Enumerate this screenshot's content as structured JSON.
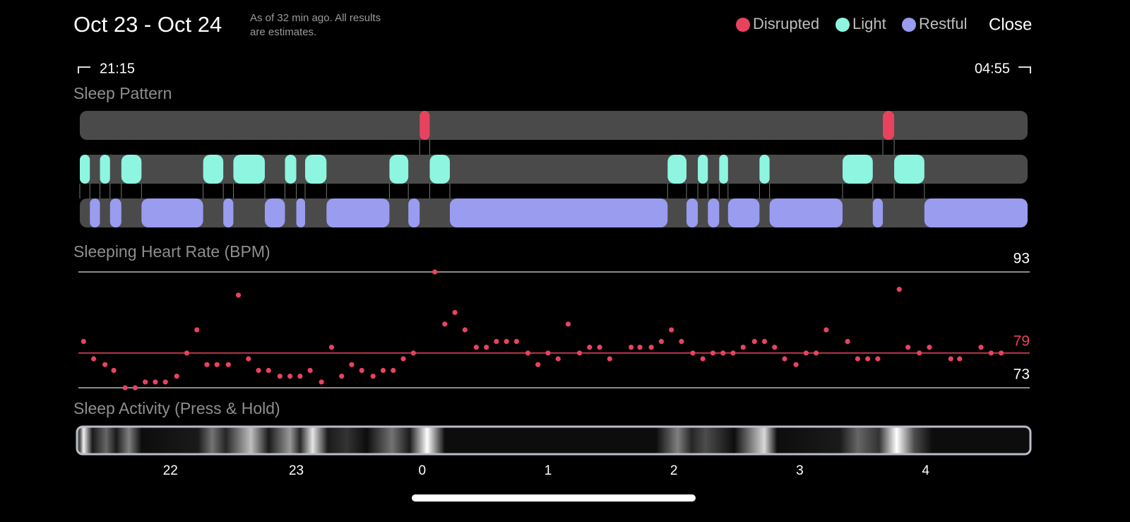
{
  "header": {
    "title": "Oct 23 - Oct 24",
    "note_lines": [
      "As of 32 min ago. All results",
      "are estimates."
    ],
    "close": "Close"
  },
  "range": {
    "start": "21:15",
    "end": "04:55"
  },
  "chart_data": [
    {
      "type": "timeline",
      "title": "Sleep Pattern",
      "xlim": [
        21.28,
        28.81
      ],
      "series": [
        {
          "name": "Disrupted",
          "color": "#e8435e",
          "segments": [
            [
              23.98,
              24.06
            ],
            [
              27.66,
              27.75
            ]
          ]
        },
        {
          "name": "Light",
          "color": "#8ef5e0",
          "segments": [
            [
              21.28,
              21.36
            ],
            [
              21.44,
              21.52
            ],
            [
              21.61,
              21.77
            ],
            [
              22.26,
              22.42
            ],
            [
              22.5,
              22.75
            ],
            [
              22.91,
              23.0
            ],
            [
              23.07,
              23.24
            ],
            [
              23.74,
              23.89
            ],
            [
              24.06,
              24.22
            ],
            [
              25.95,
              26.1
            ],
            [
              26.19,
              26.27
            ],
            [
              26.36,
              26.43
            ],
            [
              26.68,
              26.76
            ],
            [
              27.34,
              27.58
            ],
            [
              27.75,
              27.99
            ]
          ]
        },
        {
          "name": "Restful",
          "color": "#9a9cf0",
          "segments": [
            [
              21.36,
              21.44
            ],
            [
              21.52,
              21.61
            ],
            [
              21.77,
              22.26
            ],
            [
              22.42,
              22.5
            ],
            [
              22.75,
              22.91
            ],
            [
              23.0,
              23.07
            ],
            [
              23.24,
              23.74
            ],
            [
              23.89,
              23.98
            ],
            [
              24.22,
              25.95
            ],
            [
              26.1,
              26.19
            ],
            [
              26.27,
              26.36
            ],
            [
              26.43,
              26.68
            ],
            [
              26.76,
              27.34
            ],
            [
              27.58,
              27.66
            ],
            [
              27.99,
              28.81
            ]
          ]
        }
      ]
    },
    {
      "type": "scatter",
      "title": "Sleeping Heart Rate (BPM)",
      "xlim": [
        21.28,
        28.81
      ],
      "ylim": [
        73,
        93
      ],
      "yticks": [
        73,
        93
      ],
      "average": 79,
      "color": "#e8435e",
      "x": [
        21.31,
        21.39,
        21.48,
        21.55,
        21.64,
        21.72,
        21.8,
        21.88,
        21.96,
        22.05,
        22.13,
        22.21,
        22.29,
        22.37,
        22.46,
        22.54,
        22.62,
        22.7,
        22.78,
        22.87,
        22.95,
        23.03,
        23.11,
        23.2,
        23.28,
        23.36,
        23.44,
        23.52,
        23.61,
        23.69,
        23.77,
        23.85,
        23.93,
        24.1,
        24.18,
        24.26,
        24.34,
        24.43,
        24.51,
        24.59,
        24.67,
        24.75,
        24.84,
        24.92,
        25.0,
        25.08,
        25.16,
        25.25,
        25.33,
        25.41,
        25.49,
        25.66,
        25.73,
        25.82,
        25.9,
        25.98,
        26.06,
        26.15,
        26.23,
        26.31,
        26.39,
        26.47,
        26.55,
        26.64,
        26.72,
        26.8,
        26.88,
        26.97,
        27.05,
        27.13,
        27.21,
        27.38,
        27.46,
        27.54,
        27.62,
        27.79,
        27.86,
        27.95,
        28.03,
        28.2,
        28.27,
        28.44,
        28.52,
        28.6
      ],
      "values": [
        81,
        78,
        77,
        76,
        73,
        73,
        74,
        74,
        74,
        75,
        79,
        83,
        77,
        77,
        77,
        89,
        78,
        76,
        76,
        75,
        75,
        75,
        76,
        74,
        80,
        75,
        77,
        76,
        75,
        76,
        76,
        78,
        79,
        93,
        84,
        86,
        83,
        80,
        80,
        81,
        81,
        81,
        79,
        77,
        79,
        78,
        84,
        79,
        80,
        80,
        78,
        80,
        80,
        80,
        81,
        83,
        81,
        79,
        78,
        79,
        79,
        79,
        80,
        81,
        81,
        80,
        78,
        77,
        79,
        79,
        83,
        81,
        78,
        78,
        78,
        90,
        80,
        79,
        80,
        78,
        78,
        80,
        79,
        79
      ]
    },
    {
      "type": "heatstrip",
      "title": "Sleep Activity (Press & Hold)",
      "xlim": [
        21.28,
        28.81
      ],
      "xticks": [
        22,
        23,
        {
          "value": 24,
          "label": "0"
        },
        {
          "value": 25,
          "label": "1"
        },
        {
          "value": 26,
          "label": "2"
        },
        {
          "value": 27,
          "label": "3"
        },
        {
          "value": 28,
          "label": "4"
        }
      ],
      "x": [
        21.28,
        21.31,
        21.38,
        21.49,
        21.57,
        21.67,
        21.77,
        22.22,
        22.33,
        22.44,
        22.64,
        22.78,
        22.95,
        23.03,
        23.13,
        23.25,
        23.4,
        23.56,
        23.76,
        23.9,
        24.04,
        24.18,
        25.86,
        26.03,
        26.14,
        26.25,
        26.48,
        26.72,
        26.82,
        27.32,
        27.46,
        27.63,
        27.77,
        27.91,
        28.05,
        28.81
      ],
      "values": [
        0.3,
        0.95,
        0.1,
        0.4,
        0.1,
        0.5,
        0.05,
        0.1,
        0.45,
        0.15,
        0.75,
        0.1,
        0.6,
        0.15,
        0.9,
        0.1,
        0.2,
        0.05,
        0.45,
        0.1,
        1.0,
        0.05,
        0.05,
        0.5,
        0.15,
        0.3,
        0.05,
        0.85,
        0.05,
        0.1,
        0.4,
        0.2,
        1.0,
        0.3,
        0.05,
        0.05
      ]
    }
  ]
}
